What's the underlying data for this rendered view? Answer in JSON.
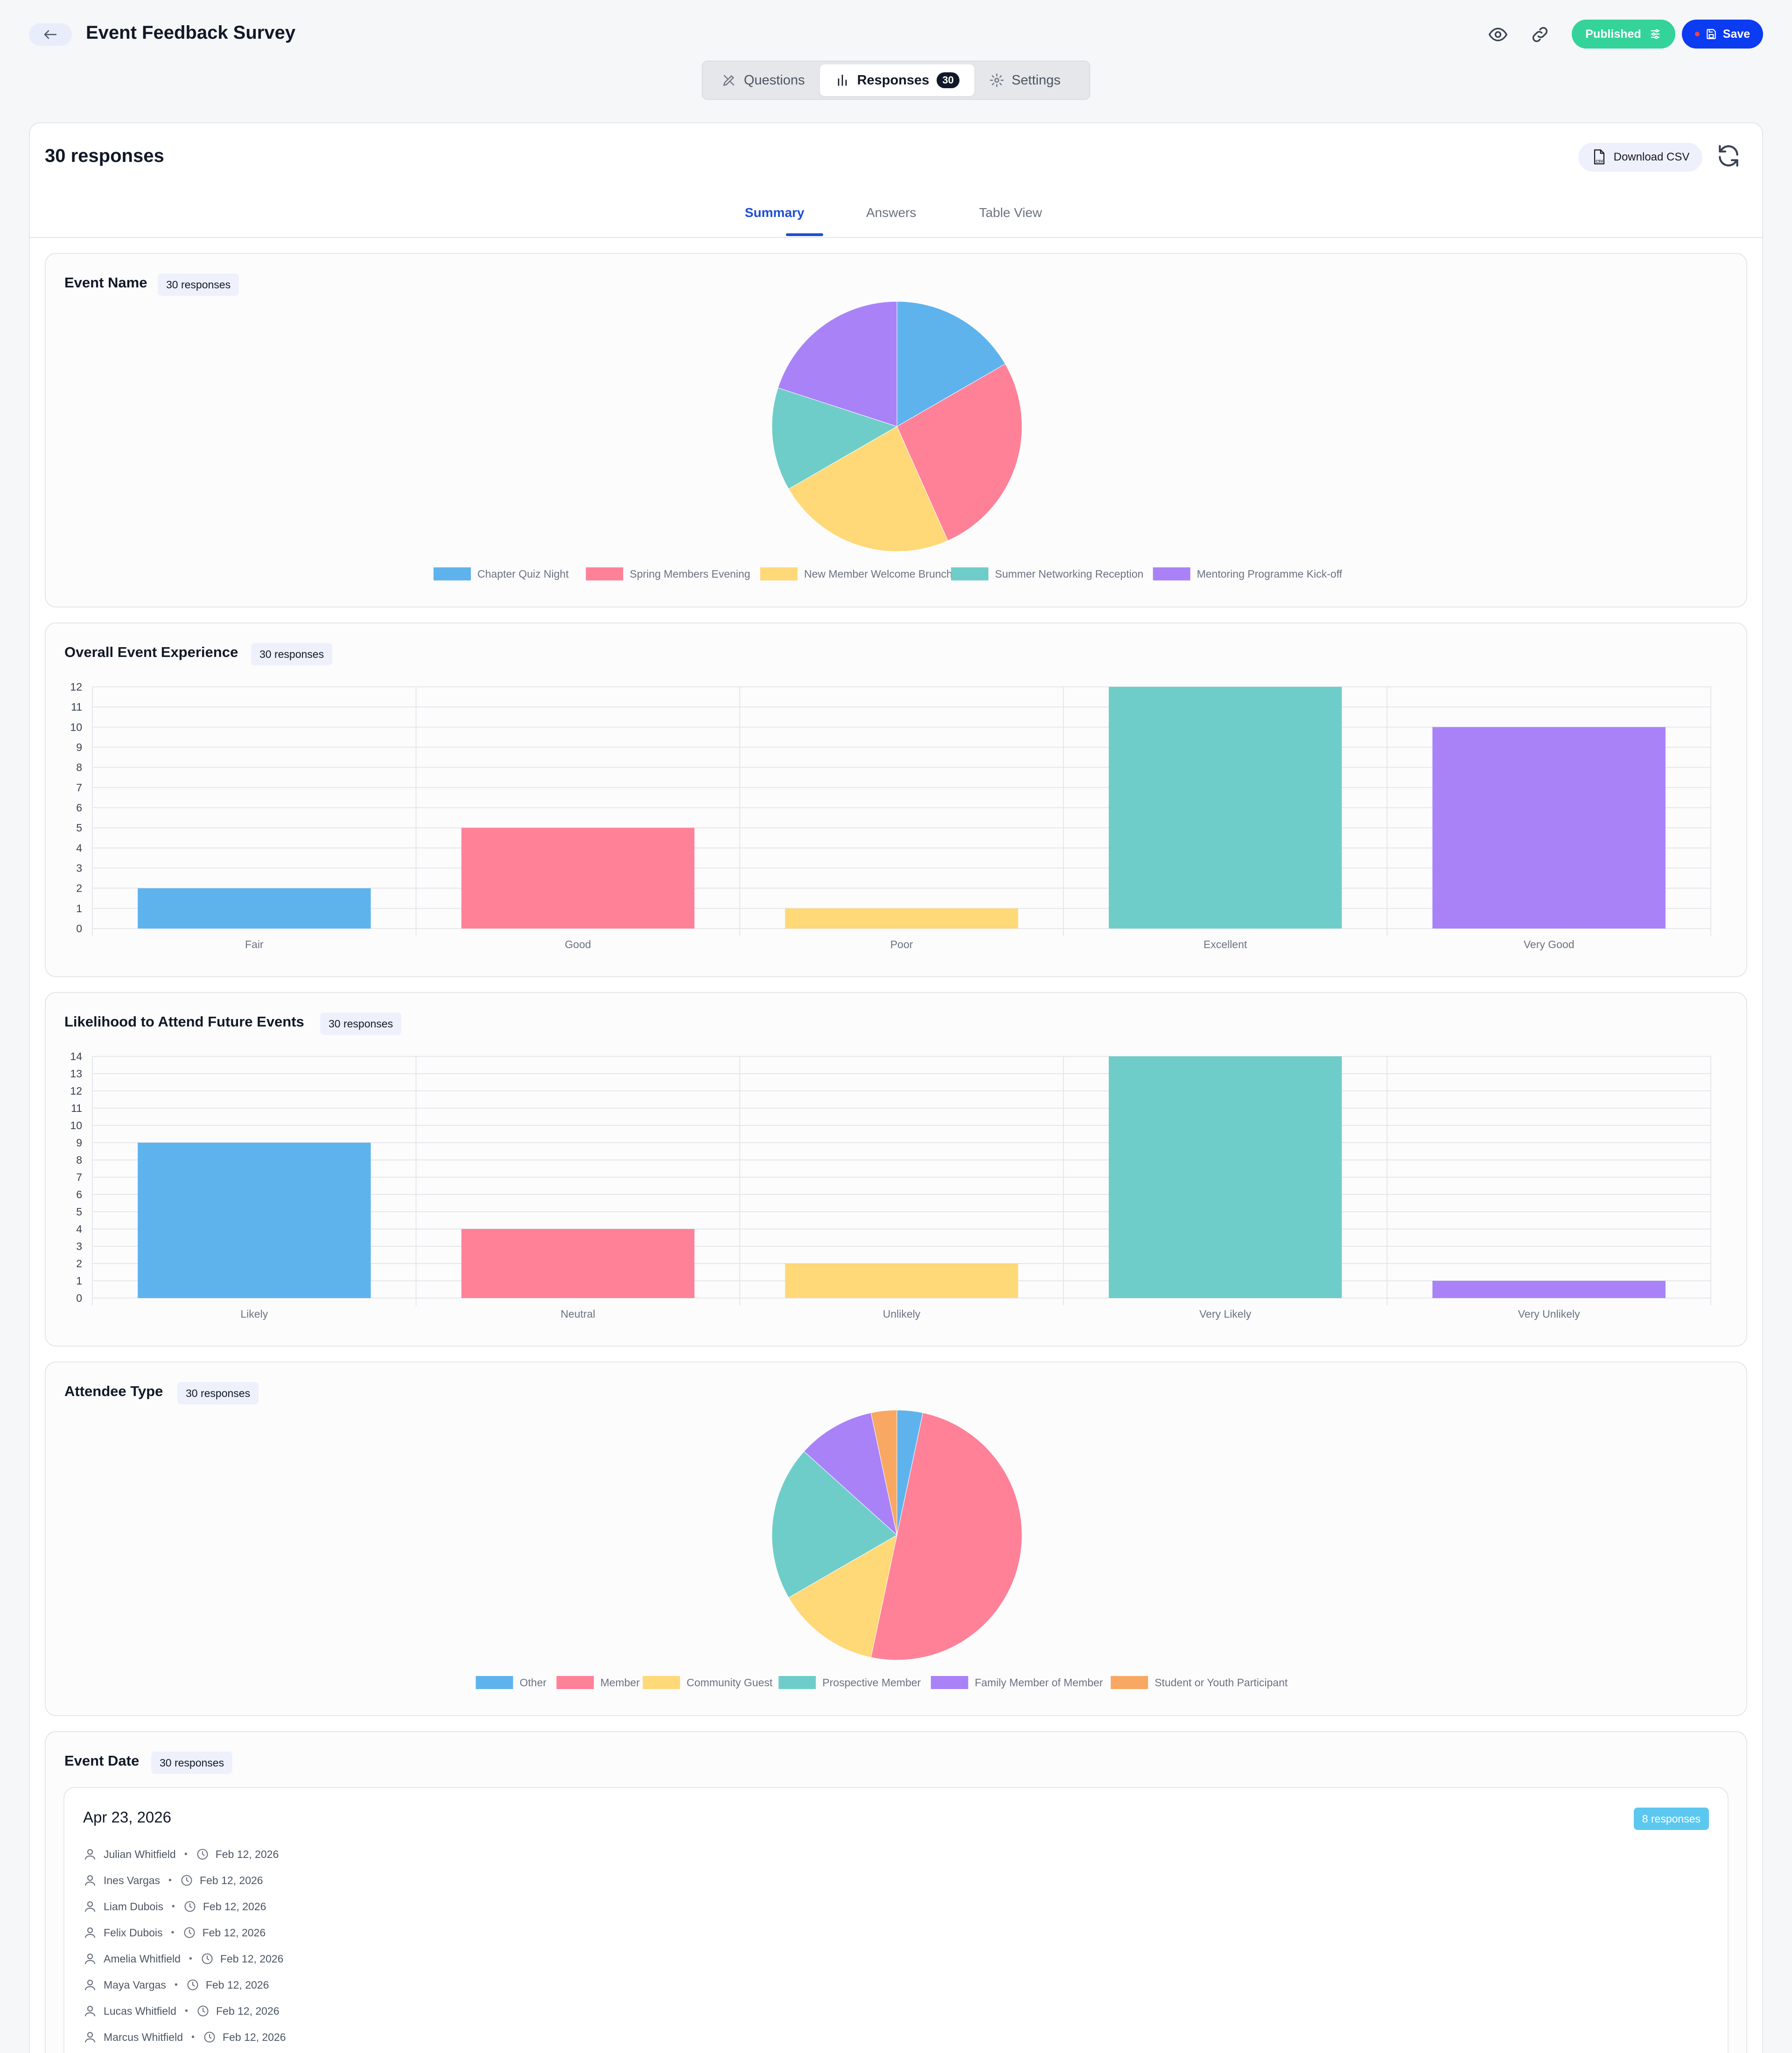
{
  "header": {
    "title": "Event Feedback Survey",
    "published_label": "Published",
    "save_label": "Save",
    "tabs": [
      {
        "label": "Questions"
      },
      {
        "label": "Responses",
        "count": "30"
      },
      {
        "label": "Settings"
      }
    ]
  },
  "responses": {
    "title": "30 responses",
    "download_label": "Download CSV",
    "subtabs": [
      "Summary",
      "Answers",
      "Table View"
    ]
  },
  "colors": {
    "blue": "#5fb3ec",
    "pink": "#ff8198",
    "yellow": "#ffd878",
    "teal": "#6fcdc9",
    "purple": "#a982f8",
    "orange": "#f8a863",
    "accent": "#0b3cf2",
    "green": "#34d399"
  },
  "questions": [
    {
      "title": "Event Name",
      "badge": "30 responses"
    },
    {
      "title": "Overall Event Experience",
      "badge": "30 responses"
    },
    {
      "title": "Likelihood to Attend Future Events",
      "badge": "30 responses"
    },
    {
      "title": "Attendee Type",
      "badge": "30 responses"
    },
    {
      "title": "Event Date",
      "badge": "30 responses"
    }
  ],
  "chart_data": [
    {
      "type": "pie",
      "categories": [
        "Chapter Quiz Night",
        "Spring Members Evening",
        "New Member Welcome Brunch",
        "Summer Networking Reception",
        "Mentoring Programme Kick-off"
      ],
      "values": [
        5,
        8,
        7,
        4,
        6
      ]
    },
    {
      "type": "bar",
      "categories": [
        "Fair",
        "Good",
        "Poor",
        "Excellent",
        "Very Good"
      ],
      "values": [
        2,
        5,
        1,
        12,
        10
      ],
      "ylim": [
        0,
        12
      ],
      "yticks": [
        "0",
        "1",
        "2",
        "3",
        "4",
        "5",
        "6",
        "7",
        "8",
        "9",
        "10",
        "11",
        "12"
      ]
    },
    {
      "type": "bar",
      "categories": [
        "Likely",
        "Neutral",
        "Unlikely",
        "Very Likely",
        "Very Unlikely"
      ],
      "values": [
        9,
        4,
        2,
        14,
        1
      ],
      "ylim": [
        0,
        14
      ],
      "yticks": [
        "0",
        "1",
        "2",
        "3",
        "4",
        "5",
        "6",
        "7",
        "8",
        "9",
        "10",
        "11",
        "12",
        "13",
        "14"
      ]
    },
    {
      "type": "pie",
      "categories": [
        "Other",
        "Member",
        "Community Guest",
        "Prospective Member",
        "Family Member of Member",
        "Student or Youth Participant"
      ],
      "values": [
        1,
        15,
        4,
        6,
        3,
        1
      ]
    }
  ],
  "event_date": {
    "date": "Apr 23, 2026",
    "badge": "8 responses",
    "rows": [
      {
        "name": "Julian Whitfield",
        "time": "Feb 12, 2026"
      },
      {
        "name": "Ines Vargas",
        "time": "Feb 12, 2026"
      },
      {
        "name": "Liam Dubois",
        "time": "Feb 12, 2026"
      },
      {
        "name": "Felix Dubois",
        "time": "Feb 12, 2026"
      },
      {
        "name": "Amelia Whitfield",
        "time": "Feb 12, 2026"
      },
      {
        "name": "Maya Vargas",
        "time": "Feb 12, 2026"
      },
      {
        "name": "Lucas Whitfield",
        "time": "Feb 12, 2026"
      },
      {
        "name": "Marcus Whitfield",
        "time": "Feb 12, 2026"
      }
    ]
  }
}
